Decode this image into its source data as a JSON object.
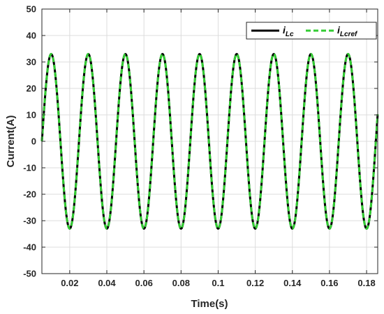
{
  "chart_data": {
    "type": "line",
    "title": "",
    "xlabel": "Time(s)",
    "ylabel": "Current(A)",
    "xlim": [
      0.005,
      0.186
    ],
    "ylim": [
      -50,
      50
    ],
    "xticks": [
      0.02,
      0.04,
      0.06,
      0.08,
      0.1,
      0.12,
      0.14,
      0.16,
      0.18
    ],
    "xtick_labels": [
      "0.02",
      "0.04",
      "0.06",
      "0.08",
      "0.1",
      "0.12",
      "0.14",
      "0.16",
      "0.18"
    ],
    "yticks": [
      -50,
      -40,
      -30,
      -20,
      -10,
      0,
      10,
      20,
      30,
      40,
      50
    ],
    "ytick_labels": [
      "-50",
      "-40",
      "-30",
      "-20",
      "-10",
      "0",
      "10",
      "20",
      "30",
      "40",
      "50"
    ],
    "grid": true,
    "legend_position": "top-right",
    "series": [
      {
        "legend_main": "i",
        "legend_sub": "Lc",
        "color": "#000000",
        "style": "solid",
        "amplitude": 33,
        "frequency_hz": 50,
        "phase_zero_crossing_s": 0.005
      },
      {
        "legend_main": "i",
        "legend_sub": "Lcref",
        "color": "#33cc33",
        "style": "dashed",
        "amplitude": 33,
        "frequency_hz": 50,
        "phase_zero_crossing_s": 0.005
      }
    ]
  }
}
